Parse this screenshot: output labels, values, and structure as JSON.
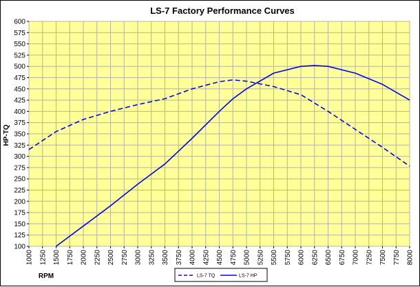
{
  "chart_data": {
    "type": "line",
    "title": "LS-7 Factory Performance Curves",
    "xlabel": "RPM",
    "ylabel": "HP-TQ",
    "xlim": [
      1000,
      8000
    ],
    "ylim": [
      100,
      600
    ],
    "x_ticks": [
      1000,
      1250,
      1500,
      1750,
      2000,
      2250,
      2500,
      2750,
      3000,
      3250,
      3500,
      3750,
      4000,
      4250,
      4500,
      4750,
      5000,
      5250,
      5500,
      5750,
      6000,
      6250,
      6500,
      6750,
      7000,
      7250,
      7500,
      7750,
      8000
    ],
    "y_ticks": [
      100,
      125,
      150,
      175,
      200,
      225,
      250,
      275,
      300,
      325,
      350,
      375,
      400,
      425,
      450,
      475,
      500,
      525,
      550,
      575,
      600
    ],
    "grid": true,
    "legend_position": "bottom",
    "series": [
      {
        "name": "LS-7 TQ",
        "style": "dashed",
        "color": "#0000ff",
        "x": [
          1000,
          1500,
          2000,
          2500,
          3000,
          3500,
          4000,
          4500,
          4750,
          5000,
          5500,
          6000,
          6500,
          7000,
          7500,
          8000
        ],
        "values": [
          315,
          355,
          382,
          400,
          415,
          428,
          450,
          466,
          470,
          467,
          455,
          437,
          400,
          360,
          320,
          278
        ]
      },
      {
        "name": "LS-7 HP",
        "style": "solid",
        "color": "#0000ff",
        "x": [
          1500,
          2000,
          2500,
          3000,
          3500,
          4000,
          4500,
          4750,
          5000,
          5500,
          6000,
          6250,
          6500,
          7000,
          7500,
          8000
        ],
        "values": [
          100,
          145,
          190,
          238,
          283,
          340,
          400,
          428,
          450,
          485,
          500,
          502,
          500,
          485,
          460,
          425
        ]
      }
    ],
    "colors": {
      "plot_background": "#ffff99",
      "gridline": "#b4b4a0",
      "line": "#0000ff"
    }
  }
}
